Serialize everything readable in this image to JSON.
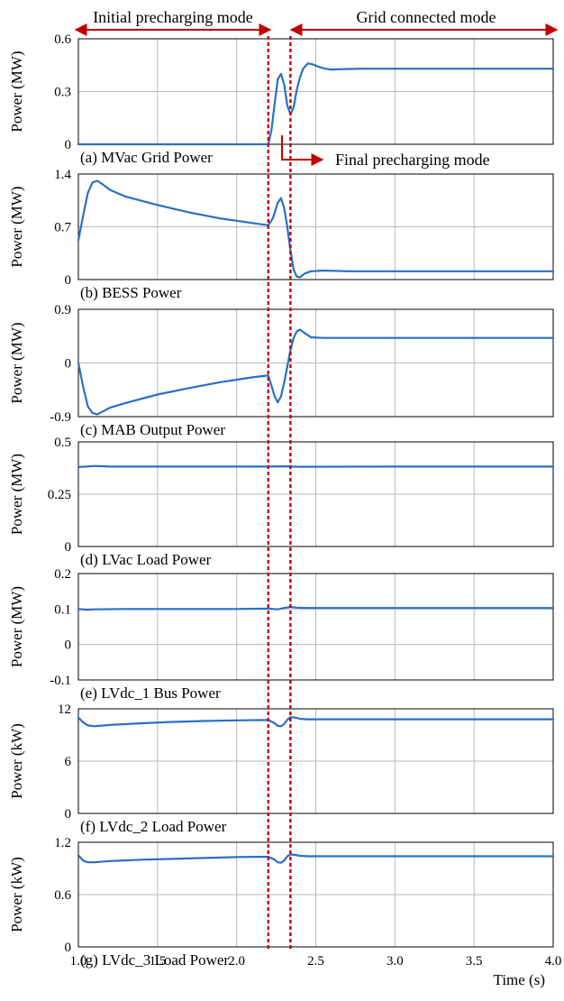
{
  "annotations": {
    "initial_mode": "Initial precharging mode",
    "grid_mode": "Grid connected mode",
    "final_mode": "Final precharging mode"
  },
  "colors": {
    "line": "#2a6fc4",
    "annotation": "#c00000",
    "grid": "#b9b9b9",
    "axes": "#000000"
  },
  "chart_data": {
    "type": "line",
    "xlabel": "Time (s)",
    "xlim": [
      1.0,
      4.0
    ],
    "xticks": [
      "1.0",
      "1.5",
      "2.0",
      "2.5",
      "3.0",
      "3.5",
      "4.0"
    ],
    "mode_boundaries": [
      2.2,
      2.34
    ],
    "panels": [
      {
        "id": "a",
        "title": "(a) MVac Grid Power",
        "ylabel": "Power (MW)",
        "ylim": [
          0,
          0.6
        ],
        "yticks": [
          "0",
          "0.3",
          "0.6"
        ],
        "x": [
          1.0,
          2.0,
          2.2,
          2.22,
          2.24,
          2.26,
          2.28,
          2.3,
          2.32,
          2.34,
          2.36,
          2.38,
          2.4,
          2.42,
          2.45,
          2.48,
          2.52,
          2.56,
          2.6,
          2.7,
          2.8,
          3.0,
          3.5,
          4.0
        ],
        "y": [
          0.0,
          0.0,
          0.0,
          0.08,
          0.23,
          0.37,
          0.4,
          0.34,
          0.22,
          0.17,
          0.21,
          0.31,
          0.38,
          0.43,
          0.46,
          0.455,
          0.44,
          0.43,
          0.425,
          0.428,
          0.43,
          0.43,
          0.43,
          0.43
        ]
      },
      {
        "id": "b",
        "title": "(b) BESS Power",
        "ylabel": "Power (MW)",
        "ylim": [
          0,
          1.4
        ],
        "yticks": [
          "0",
          "0.7",
          "1.4"
        ],
        "x": [
          1.0,
          1.03,
          1.06,
          1.09,
          1.12,
          1.15,
          1.2,
          1.3,
          1.5,
          1.7,
          1.9,
          2.1,
          2.2,
          2.23,
          2.26,
          2.28,
          2.3,
          2.32,
          2.34,
          2.36,
          2.38,
          2.4,
          2.43,
          2.47,
          2.55,
          2.7,
          3.0,
          3.5,
          4.0
        ],
        "y": [
          0.52,
          0.85,
          1.15,
          1.29,
          1.31,
          1.27,
          1.19,
          1.1,
          0.99,
          0.89,
          0.81,
          0.75,
          0.72,
          0.82,
          1.02,
          1.08,
          0.95,
          0.7,
          0.38,
          0.13,
          0.04,
          0.03,
          0.08,
          0.11,
          0.12,
          0.11,
          0.11,
          0.11,
          0.11
        ]
      },
      {
        "id": "c",
        "title": "(c) MAB Output Power",
        "ylabel": "Power (MW)",
        "ylim": [
          -0.9,
          0.9
        ],
        "yticks": [
          "-0.9",
          "0",
          "0.9"
        ],
        "x": [
          1.0,
          1.03,
          1.06,
          1.09,
          1.12,
          1.15,
          1.2,
          1.3,
          1.5,
          1.7,
          1.9,
          2.1,
          2.2,
          2.22,
          2.24,
          2.26,
          2.28,
          2.3,
          2.32,
          2.34,
          2.36,
          2.38,
          2.4,
          2.43,
          2.47,
          2.55,
          2.7,
          3.0,
          3.5,
          4.0
        ],
        "y": [
          0.0,
          -0.4,
          -0.73,
          -0.84,
          -0.86,
          -0.82,
          -0.75,
          -0.67,
          -0.53,
          -0.42,
          -0.32,
          -0.24,
          -0.21,
          -0.38,
          -0.56,
          -0.66,
          -0.56,
          -0.33,
          -0.06,
          0.22,
          0.42,
          0.53,
          0.56,
          0.5,
          0.43,
          0.42,
          0.42,
          0.42,
          0.42,
          0.42
        ]
      },
      {
        "id": "d",
        "title": "(d) LVac Load Power",
        "ylabel": "Power (MW)",
        "ylim": [
          0,
          0.5
        ],
        "yticks": [
          "0",
          "0.25",
          "0.5"
        ],
        "x": [
          1.0,
          1.05,
          1.1,
          1.2,
          2.2,
          2.3,
          2.4,
          3.0,
          4.0
        ],
        "y": [
          0.38,
          0.382,
          0.385,
          0.382,
          0.382,
          0.383,
          0.381,
          0.382,
          0.382
        ]
      },
      {
        "id": "e",
        "title": "(e) LVdc_1 Bus Power",
        "ylabel": "Power (MW)",
        "ylim": [
          -0.1,
          0.2
        ],
        "yticks": [
          "-0.1",
          "0",
          "0.1",
          "0.2"
        ],
        "x": [
          1.0,
          1.05,
          1.1,
          1.3,
          2.0,
          2.2,
          2.26,
          2.3,
          2.34,
          2.38,
          2.45,
          3.0,
          4.0
        ],
        "y": [
          0.1,
          0.098,
          0.099,
          0.1,
          0.1,
          0.101,
          0.099,
          0.103,
          0.106,
          0.104,
          0.103,
          0.103,
          0.103
        ]
      },
      {
        "id": "f",
        "title": "(f) LVdc_2 Load Power",
        "ylabel": "Power (kW)",
        "ylim": [
          0,
          12
        ],
        "yticks": [
          "0",
          "6",
          "12"
        ],
        "x": [
          1.0,
          1.03,
          1.06,
          1.1,
          1.2,
          1.4,
          1.6,
          1.8,
          2.0,
          2.2,
          2.24,
          2.26,
          2.28,
          2.3,
          2.32,
          2.34,
          2.37,
          2.4,
          2.45,
          2.6,
          3.0,
          4.0
        ],
        "y": [
          11.0,
          10.45,
          10.1,
          10.0,
          10.15,
          10.35,
          10.5,
          10.6,
          10.68,
          10.72,
          10.35,
          10.05,
          10.0,
          10.25,
          10.75,
          11.05,
          11.0,
          10.85,
          10.8,
          10.8,
          10.8,
          10.8
        ]
      },
      {
        "id": "g",
        "title": "(g) LVdc_3 Load Power",
        "ylabel": "Power (kW)",
        "ylim": [
          0,
          1.2
        ],
        "yticks": [
          "0",
          "0.6",
          "1.2"
        ],
        "x": [
          1.0,
          1.03,
          1.06,
          1.1,
          1.2,
          1.4,
          1.6,
          1.8,
          2.0,
          2.2,
          2.24,
          2.26,
          2.28,
          2.3,
          2.32,
          2.34,
          2.37,
          2.4,
          2.45,
          2.6,
          3.0,
          4.0
        ],
        "y": [
          1.05,
          0.99,
          0.97,
          0.97,
          0.985,
          1.0,
          1.01,
          1.02,
          1.03,
          1.035,
          1.0,
          0.97,
          0.965,
          0.99,
          1.04,
          1.06,
          1.055,
          1.045,
          1.04,
          1.04,
          1.04,
          1.04
        ]
      }
    ]
  }
}
